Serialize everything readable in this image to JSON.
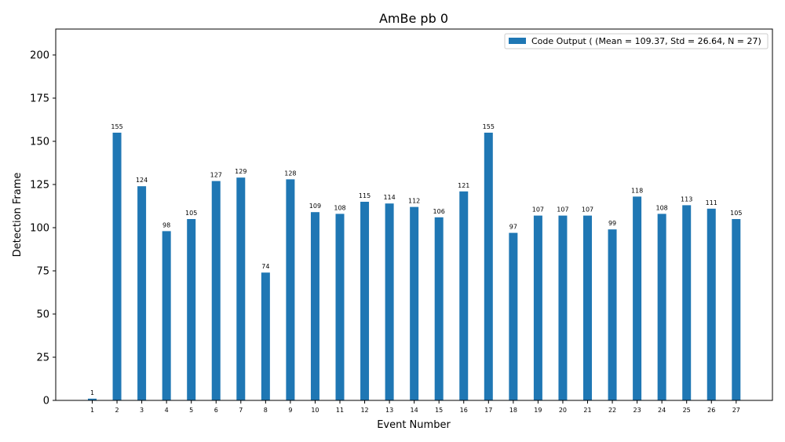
{
  "chart_data": {
    "type": "bar",
    "title": "AmBe pb 0",
    "xlabel": "Event Number",
    "ylabel": "Detection Frame",
    "ylim": [
      0,
      215
    ],
    "yticks": [
      0,
      25,
      50,
      75,
      100,
      125,
      150,
      175,
      200
    ],
    "grid": false,
    "legend_position": "top-right",
    "bar_color": "#1f77b4",
    "categories": [
      "1",
      "2",
      "3",
      "4",
      "5",
      "6",
      "7",
      "8",
      "9",
      "10",
      "11",
      "12",
      "13",
      "14",
      "15",
      "16",
      "17",
      "18",
      "19",
      "20",
      "21",
      "22",
      "23",
      "24",
      "25",
      "26",
      "27"
    ],
    "series": [
      {
        "name": "Code Output ( (Mean = 109.37, Std = 26.64, N = 27)",
        "values": [
          1,
          155,
          124,
          98,
          105,
          127,
          129,
          74,
          128,
          109,
          108,
          115,
          114,
          112,
          106,
          121,
          155,
          97,
          107,
          107,
          107,
          99,
          118,
          108,
          113,
          111,
          105
        ]
      }
    ]
  }
}
